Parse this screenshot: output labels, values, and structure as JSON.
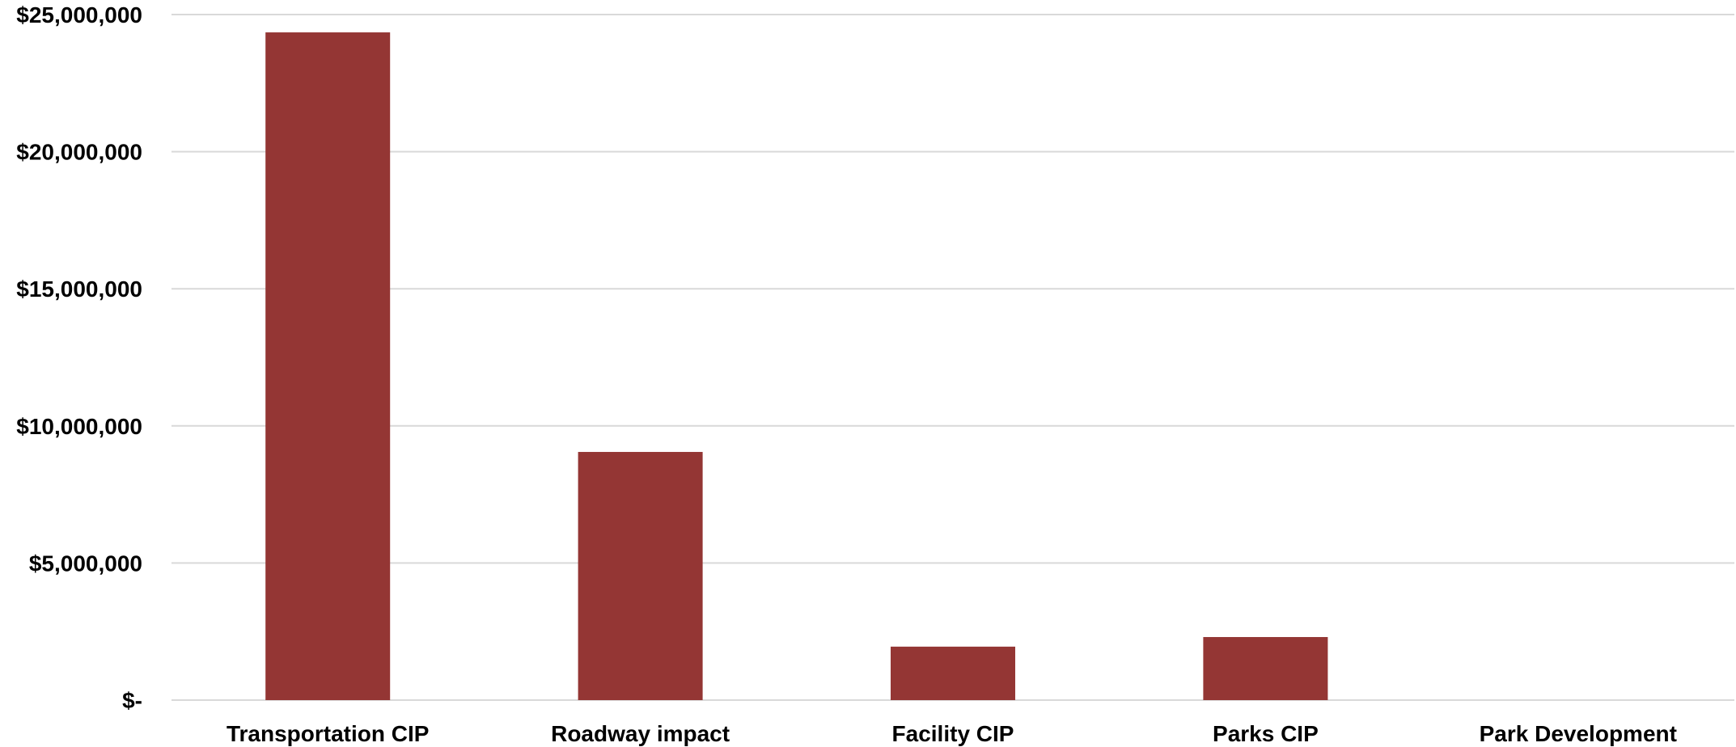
{
  "chart_data": {
    "type": "bar",
    "title": "",
    "xlabel": "",
    "ylabel": "",
    "categories": [
      "Transportation CIP",
      "Roadway impact",
      "Facility CIP",
      "Parks CIP",
      "Park Development"
    ],
    "values": [
      24350000,
      9050000,
      1950000,
      2300000,
      0
    ],
    "ylim": [
      0,
      25000000
    ],
    "yticks": [
      0,
      5000000,
      10000000,
      15000000,
      20000000,
      25000000
    ],
    "ytick_labels": [
      "$-",
      "$5,000,000",
      "$10,000,000",
      "$15,000,000",
      "$20,000,000",
      "$25,000,000"
    ],
    "grid": true,
    "legend": "none",
    "bar_color": "#943634",
    "grid_color": "#d9d9d9"
  }
}
